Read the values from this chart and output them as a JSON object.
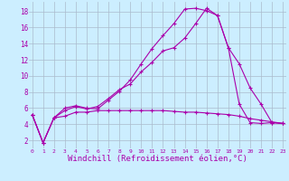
{
  "background_color": "#cceeff",
  "line_color": "#aa00aa",
  "grid_color": "#aabbcc",
  "xlabel": "Windchill (Refroidissement éolien,°C)",
  "xlabel_fontsize": 6.5,
  "yticks": [
    2,
    4,
    6,
    8,
    10,
    12,
    14,
    16,
    18
  ],
  "xticks": [
    0,
    1,
    2,
    3,
    4,
    5,
    6,
    7,
    8,
    9,
    10,
    11,
    12,
    13,
    14,
    15,
    16,
    17,
    18,
    19,
    20,
    21,
    22,
    23
  ],
  "xlim": [
    -0.3,
    23.3
  ],
  "ylim": [
    1.0,
    19.2
  ],
  "line1_x": [
    0,
    1,
    2,
    3,
    4,
    5,
    6,
    7,
    8,
    9,
    10,
    11,
    12,
    13,
    14,
    15,
    16,
    17,
    18,
    19,
    20,
    21,
    22,
    23
  ],
  "line1_y": [
    5.2,
    1.7,
    4.8,
    6.0,
    6.3,
    6.0,
    5.9,
    7.0,
    8.1,
    9.5,
    11.5,
    13.4,
    15.0,
    16.5,
    18.3,
    18.4,
    18.1,
    17.5,
    13.5,
    6.5,
    4.2,
    4.1,
    4.2,
    4.1
  ],
  "line2_x": [
    0,
    1,
    2,
    3,
    4,
    5,
    6,
    7,
    8,
    9,
    10,
    11,
    12,
    13,
    14,
    15,
    16,
    17,
    18,
    19,
    20,
    21,
    22,
    23
  ],
  "line2_y": [
    5.2,
    1.7,
    4.8,
    5.7,
    6.2,
    5.9,
    6.2,
    7.2,
    8.3,
    9.0,
    10.5,
    11.7,
    13.1,
    13.5,
    14.7,
    16.5,
    18.4,
    17.5,
    13.5,
    11.5,
    8.5,
    6.5,
    4.2,
    4.1
  ],
  "line3_x": [
    0,
    1,
    2,
    3,
    4,
    5,
    6,
    7,
    8,
    9,
    10,
    11,
    12,
    13,
    14,
    15,
    16,
    17,
    18,
    19,
    20,
    21,
    22,
    23
  ],
  "line3_y": [
    5.2,
    1.7,
    4.8,
    5.0,
    5.5,
    5.5,
    5.7,
    5.7,
    5.7,
    5.7,
    5.7,
    5.7,
    5.7,
    5.6,
    5.5,
    5.5,
    5.4,
    5.3,
    5.2,
    5.0,
    4.7,
    4.5,
    4.3,
    4.1
  ]
}
